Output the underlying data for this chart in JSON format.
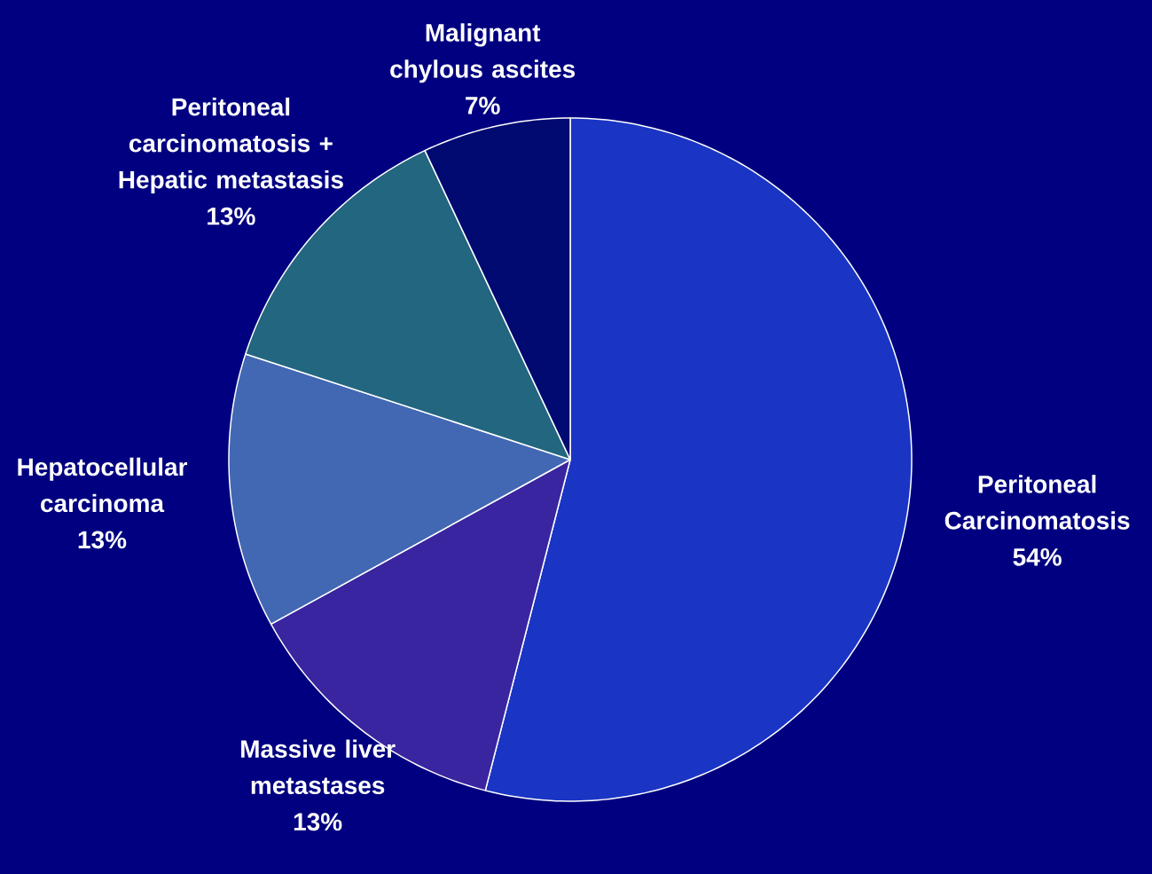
{
  "chart_data": {
    "type": "pie",
    "categories": [
      "Peritoneal Carcinomatosis",
      "Massive liver metastases",
      "Hepatocellular carcinoma",
      "Peritoneal carcinomatosis + Hepatic metastasis",
      "Malignant chylous ascites"
    ],
    "values": [
      54,
      13,
      13,
      13,
      7
    ],
    "colors": [
      "#1a35c4",
      "#3a25a0",
      "#4268b4",
      "#226680",
      "#000a70"
    ],
    "value_labels": [
      "54%",
      "13%",
      "13%",
      "13%",
      "7%"
    ]
  }
}
